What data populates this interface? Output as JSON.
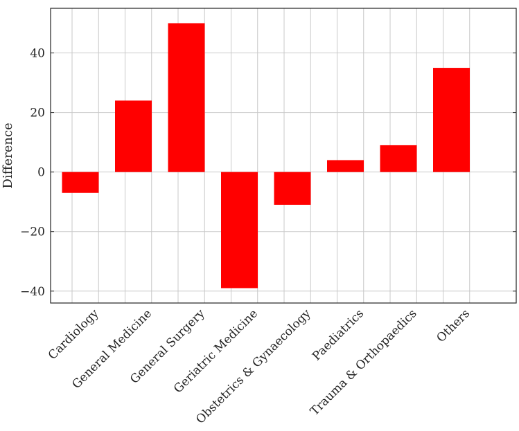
{
  "chart_data": {
    "type": "bar",
    "title": "",
    "xlabel": "",
    "ylabel": "Difference",
    "categories": [
      "Cardiology",
      "General Medicine",
      "General Surgery",
      "Geriatric Medicine",
      "Obstetrics & Gynaecology",
      "Paediatrics",
      "Trauma & Orthopaedics",
      "Others"
    ],
    "values": [
      -7,
      24,
      50,
      -39,
      -11,
      4,
      9,
      35
    ],
    "ylim": [
      -44,
      55
    ],
    "yticks": [
      -40,
      -20,
      0,
      20,
      40
    ],
    "ytick_labels": [
      "−40",
      "−20",
      "0",
      "20",
      "40"
    ],
    "bar_color": "#ff0000",
    "grid": true,
    "legend": "none"
  }
}
